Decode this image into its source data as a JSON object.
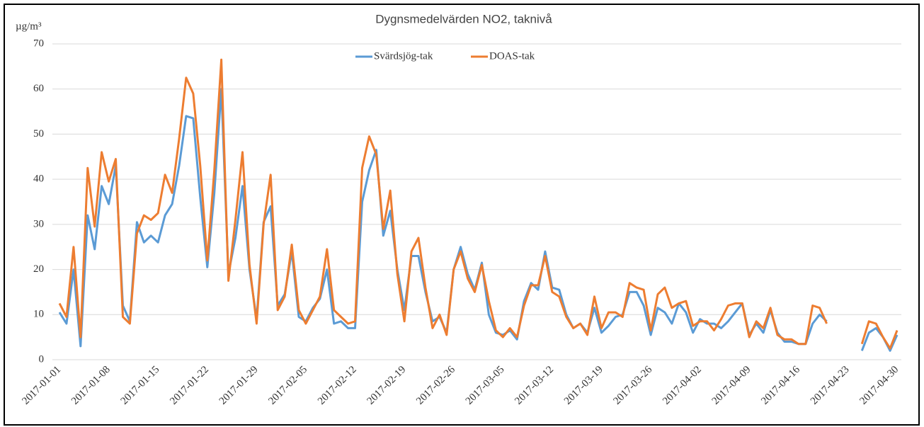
{
  "chart_data": {
    "type": "line",
    "title": "Dygnsmedelvärden NO2, taknivå",
    "y_label": "µg/m³",
    "categories": [
      "2017-01-01",
      null,
      null,
      null,
      null,
      null,
      null,
      "2017-01-08",
      null,
      null,
      null,
      null,
      null,
      null,
      "2017-01-15",
      null,
      null,
      null,
      null,
      null,
      null,
      "2017-01-22",
      null,
      null,
      null,
      null,
      null,
      null,
      "2017-01-29",
      null,
      null,
      null,
      null,
      null,
      null,
      "2017-02-05",
      null,
      null,
      null,
      null,
      null,
      null,
      "2017-02-12",
      null,
      null,
      null,
      null,
      null,
      null,
      "2017-02-19",
      null,
      null,
      null,
      null,
      null,
      null,
      "2017-02-26",
      null,
      null,
      null,
      null,
      null,
      null,
      "2017-03-05",
      null,
      null,
      null,
      null,
      null,
      null,
      "2017-03-12",
      null,
      null,
      null,
      null,
      null,
      null,
      "2017-03-19",
      null,
      null,
      null,
      null,
      null,
      null,
      "2017-03-26",
      null,
      null,
      null,
      null,
      null,
      null,
      "2017-04-02",
      null,
      null,
      null,
      null,
      null,
      null,
      "2017-04-09",
      null,
      null,
      null,
      null,
      null,
      null,
      "2017-04-16",
      null,
      null,
      null,
      null,
      null,
      null,
      "2017-04-23",
      null,
      null,
      null,
      null,
      null,
      null,
      "2017-04-30"
    ],
    "series": [
      {
        "name": "Svärdsjög-tak",
        "color": "#5b9bd5",
        "values": [
          10.5,
          8,
          20,
          3,
          32,
          24.5,
          38.5,
          34.5,
          43,
          12,
          8.5,
          30.5,
          26,
          27.5,
          26,
          32,
          34.5,
          43,
          54,
          53.5,
          36,
          20.5,
          37,
          60,
          19,
          27,
          38.5,
          20,
          9,
          30.5,
          34,
          12,
          14.5,
          24,
          9.5,
          8.5,
          11.5,
          13.5,
          20,
          8,
          8.5,
          7,
          7,
          35,
          42,
          46.5,
          27.5,
          33,
          20,
          11,
          23,
          23,
          15,
          8.5,
          9.5,
          6,
          20,
          25,
          19,
          15.5,
          21.5,
          10,
          6,
          5.5,
          6.5,
          4.5,
          13,
          17,
          15.5,
          24,
          16,
          15.5,
          10,
          7,
          8,
          6,
          11.5,
          6,
          7.5,
          9.5,
          10,
          15,
          15,
          12,
          5.5,
          11.5,
          10.5,
          8,
          12.5,
          10.5,
          6,
          9,
          8,
          8,
          7,
          8.5,
          10.5,
          12.5,
          5.5,
          8,
          6,
          11,
          6,
          4,
          4,
          3.5,
          3.5,
          8,
          10,
          8.5,
          null,
          null,
          null,
          null,
          2,
          6,
          7,
          5,
          2,
          5.5
        ]
      },
      {
        "name": "DOAS-tak",
        "color": "#ed7d31",
        "values": [
          12.5,
          9.5,
          25,
          5,
          42.5,
          29.5,
          46,
          39.5,
          44.5,
          9.5,
          8,
          28,
          32,
          31,
          32.5,
          41,
          37,
          49,
          62.5,
          59,
          43,
          22,
          42,
          66.5,
          17.5,
          31,
          46,
          21,
          8,
          30,
          41,
          11,
          14,
          25.5,
          11,
          8,
          11,
          14,
          24.5,
          11,
          9.5,
          8,
          8.5,
          42.5,
          49.5,
          45.5,
          29,
          37.5,
          19,
          8.5,
          24,
          27,
          16,
          7,
          10,
          5.5,
          20,
          24,
          18,
          15,
          21,
          13,
          6.5,
          5,
          7,
          5,
          12,
          16.5,
          16.5,
          23,
          15,
          14,
          9.5,
          7,
          8,
          5.5,
          14,
          7,
          10.5,
          10.5,
          9.5,
          17,
          16,
          15.5,
          6.5,
          14.5,
          16,
          11.5,
          12.5,
          13,
          7.5,
          8.5,
          8.5,
          6.5,
          9,
          12,
          12.5,
          12.5,
          5,
          8.5,
          7,
          11.5,
          5.5,
          4.5,
          4.5,
          3.5,
          3.5,
          12,
          11.5,
          8,
          null,
          null,
          null,
          null,
          3.5,
          8.5,
          8,
          5,
          2.5,
          6.5
        ]
      }
    ],
    "ylim": [
      0,
      70
    ],
    "yticks": [
      0,
      10,
      20,
      30,
      40,
      50,
      60,
      70
    ],
    "grid": true,
    "legend": "top"
  }
}
